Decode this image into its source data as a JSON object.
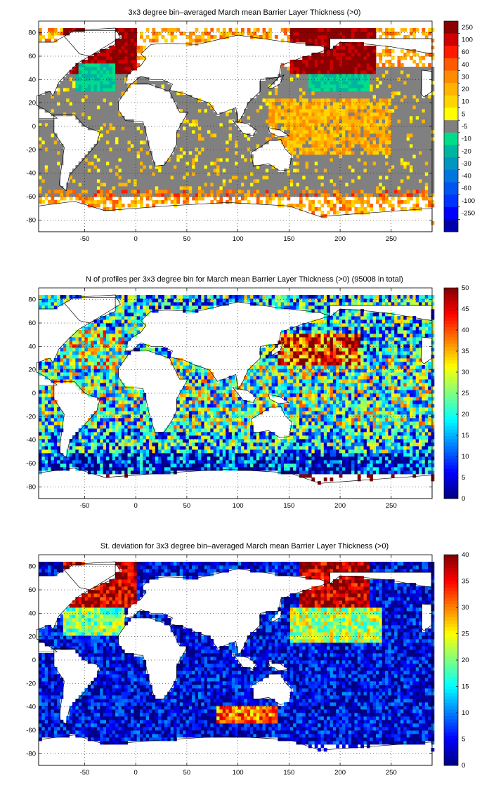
{
  "panels": [
    {
      "title": "3x3 degree bin–averaged March mean Barrier Layer Thickness (>0)",
      "chart_data": {
        "type": "heatmap",
        "xlim": [
          -95,
          290
        ],
        "ylim": [
          -90,
          90
        ],
        "xticks": [
          -50,
          0,
          50,
          100,
          150,
          200,
          250
        ],
        "yticks": [
          -80,
          -60,
          -40,
          -20,
          0,
          20,
          40,
          60,
          80
        ],
        "grid": true,
        "colorbar": {
          "scale": "categorical",
          "ticks": [
            "250",
            "100",
            "60",
            "40",
            "30",
            "20",
            "10",
            "5",
            "-5",
            "-10",
            "-20",
            "-30",
            "-40",
            "-60",
            "-100",
            "-250"
          ],
          "colors": [
            "#8b0000",
            "#d10000",
            "#ff1a00",
            "#ff5a00",
            "#ff8c00",
            "#ffb400",
            "#ffd500",
            "#ffff00",
            "#808080",
            "#00dd88",
            "#00b5a0",
            "#0096c0",
            "#0077dd",
            "#0055f0",
            "#0033ff",
            "#0000ff",
            "#0000aa"
          ],
          "mask_color": "#808080"
        }
      }
    },
    {
      "title": "N of profiles per 3x3 degree bin for March mean Barrier Layer Thickness (>0) (95008 in total)",
      "chart_data": {
        "type": "heatmap",
        "xlim": [
          -95,
          290
        ],
        "ylim": [
          -90,
          90
        ],
        "xticks": [
          -50,
          0,
          50,
          100,
          150,
          200,
          250
        ],
        "yticks": [
          -80,
          -60,
          -40,
          -20,
          0,
          20,
          40,
          60,
          80
        ],
        "grid": true,
        "colorbar": {
          "scale": "linear",
          "min": 0,
          "max": 50,
          "ticks": [
            0,
            5,
            10,
            15,
            20,
            25,
            30,
            35,
            40,
            45,
            50
          ],
          "colormap": "jet"
        }
      }
    },
    {
      "title": "St. deviation for 3x3 degree bin–averaged March mean Barrier Layer Thickness (>0)",
      "chart_data": {
        "type": "heatmap",
        "xlim": [
          -95,
          290
        ],
        "ylim": [
          -90,
          90
        ],
        "xticks": [
          -50,
          0,
          50,
          100,
          150,
          200,
          250
        ],
        "yticks": [
          -80,
          -60,
          -40,
          -20,
          0,
          20,
          40,
          60,
          80
        ],
        "grid": true,
        "colorbar": {
          "scale": "linear",
          "min": 0,
          "max": 40,
          "ticks": [
            0,
            5,
            10,
            15,
            20,
            25,
            30,
            35,
            40
          ],
          "colormap": "jet"
        }
      }
    }
  ]
}
